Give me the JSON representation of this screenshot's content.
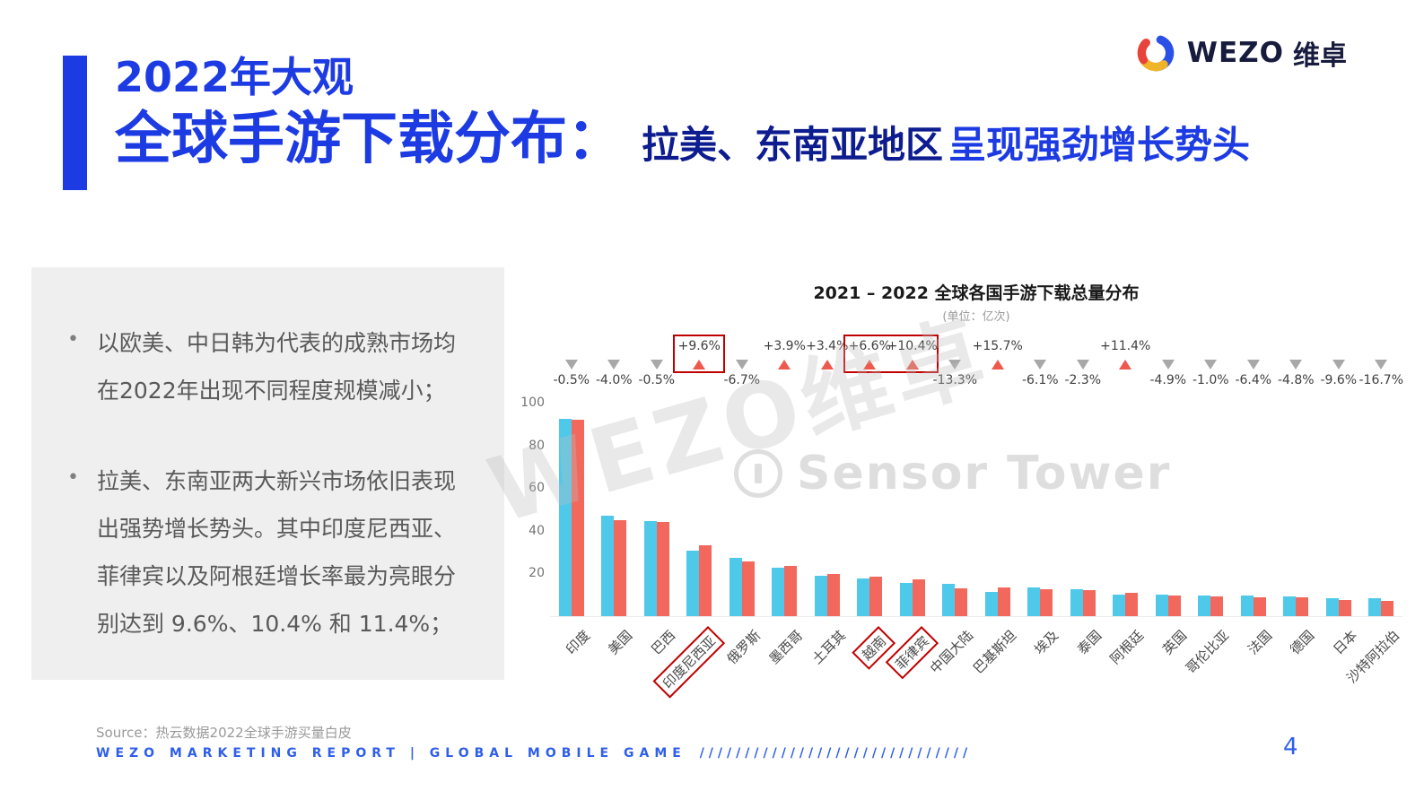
{
  "logo": {
    "brand": "WEZO",
    "brand_cn": "维卓"
  },
  "header": {
    "kicker": "2022年大观",
    "title": "全球手游下载分布：",
    "subtitle_dark": "拉美、东南亚地区",
    "subtitle_accent": "呈现强劲增长势头",
    "accent_color": "#1d3be3"
  },
  "left_panel": {
    "bullets": [
      "以欧美、中日韩为代表的成熟市场均在2022年出现不同程度规模减小；",
      "拉美、东南亚两大新兴市场依旧表现出强势增长势头。其中印度尼西亚、菲律宾以及阿根廷增长率最为亮眼分别达到 9.6%、10.4% 和 11.4%；"
    ]
  },
  "chart_data": {
    "type": "bar",
    "title": "2021 – 2022 全球各国手游下载总量分布",
    "subtitle": "(单位：亿次)",
    "xlabel": "",
    "ylabel": "",
    "ylim": [
      0,
      100
    ],
    "yticks": [
      100,
      80,
      60,
      40,
      20
    ],
    "grid": false,
    "legend": "none",
    "categories": [
      "印度",
      "美国",
      "巴西",
      "印度尼西亚",
      "俄罗斯",
      "墨西哥",
      "土耳其",
      "越南",
      "菲律宾",
      "中国大陆",
      "巴基斯坦",
      "埃及",
      "泰国",
      "阿根廷",
      "英国",
      "哥伦比亚",
      "法国",
      "德国",
      "日本",
      "沙特阿拉伯"
    ],
    "series": [
      {
        "name": "2021",
        "color": "#4ec9ea",
        "values": [
          92.5,
          47,
          44.5,
          30.5,
          27.5,
          22.5,
          19,
          17.5,
          15.5,
          15,
          11.5,
          13.5,
          12.5,
          10,
          10,
          9.5,
          9.5,
          9.2,
          8.5,
          8.4
        ]
      },
      {
        "name": "2022",
        "color": "#f2685c",
        "values": [
          92,
          45.1,
          44.3,
          33.4,
          25.7,
          23.4,
          19.6,
          18.7,
          17.1,
          13,
          13.3,
          12.7,
          12.2,
          11.1,
          9.5,
          9.4,
          8.9,
          8.8,
          7.7,
          7.0
        ]
      }
    ],
    "change_labels": [
      "-0.5%",
      "-4.0%",
      "-0.5%",
      "+9.6%",
      "-6.7%",
      "+3.9%",
      "+3.4%",
      "+6.6%",
      "+10.4%",
      "-13.3%",
      "+15.7%",
      "-6.1%",
      "-2.3%",
      "+11.4%",
      "-4.9%",
      "-1.0%",
      "-6.4%",
      "-4.8%",
      "-9.6%",
      "-16.7%"
    ],
    "highlighted_categories": [
      "印度尼西亚",
      "越南",
      "菲律宾"
    ],
    "highlight_box_color": "#c00000",
    "up_marker_color": "#ed5a4d",
    "down_marker_color": "#a8a8a8",
    "watermarks": [
      "WEZO维卓",
      "Sensor Tower"
    ]
  },
  "footer": {
    "source": "Source：热云数据2022全球手游买量白皮",
    "report_line": "WEZO MARKETING REPORT | GLOBAL MOBILE GAME",
    "slashes": "//////////////////////////////",
    "page_number": "4"
  }
}
